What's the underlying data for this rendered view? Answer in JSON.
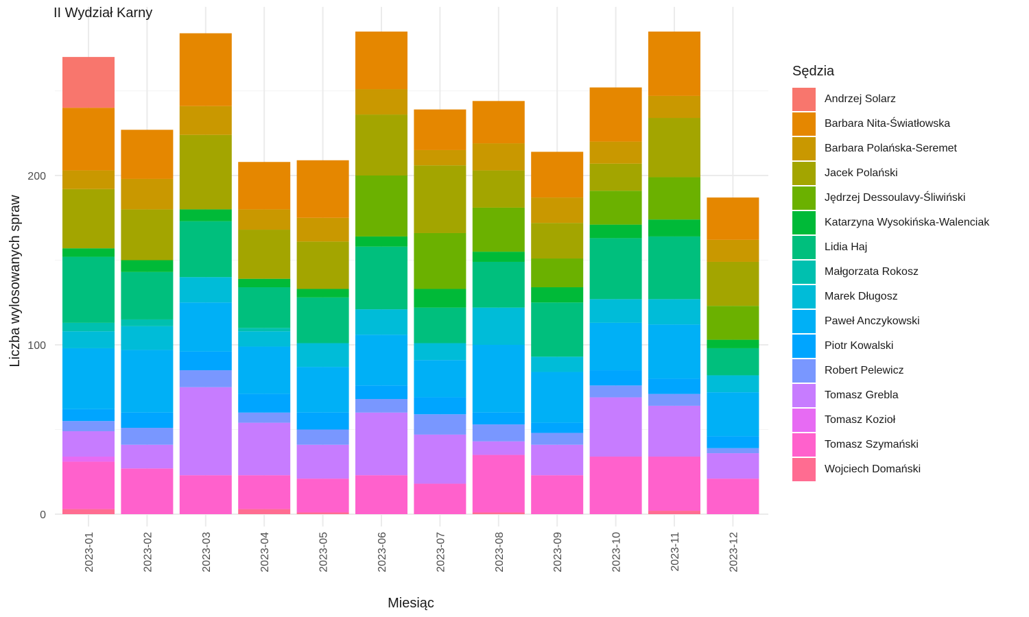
{
  "chart_data": {
    "type": "bar",
    "stacked": true,
    "title": "II Wydział Karny",
    "xlabel": "Miesiąc",
    "ylabel": "Liczba wylosowanych spraw",
    "ylim": [
      0,
      290
    ],
    "yticks": [
      0,
      100,
      200
    ],
    "grid": true,
    "legend_title": "Sędzia",
    "legend_position": "right",
    "categories": [
      "2023-01",
      "2023-02",
      "2023-03",
      "2023-04",
      "2023-05",
      "2023-06",
      "2023-07",
      "2023-08",
      "2023-09",
      "2023-10",
      "2023-11",
      "2023-12"
    ],
    "series": [
      {
        "name": "Andrzej Solarz",
        "color": "#F8766D",
        "values": [
          30,
          0,
          0,
          0,
          0,
          0,
          0,
          0,
          0,
          0,
          0,
          0
        ]
      },
      {
        "name": "Barbara Nita-Światłowska",
        "color": "#E58700",
        "values": [
          37,
          29,
          43,
          28,
          34,
          34,
          24,
          25,
          27,
          32,
          38,
          25
        ]
      },
      {
        "name": "Barbara Polańska-Seremet",
        "color": "#C99800",
        "values": [
          11,
          18,
          17,
          12,
          14,
          15,
          9,
          16,
          15,
          13,
          13,
          13
        ]
      },
      {
        "name": "Jacek Polański",
        "color": "#A3A500",
        "values": [
          35,
          30,
          44,
          29,
          28,
          36,
          40,
          22,
          21,
          16,
          35,
          26
        ]
      },
      {
        "name": "Jędrzej Dessoulavy-Śliwiński",
        "color": "#6BB100",
        "values": [
          0,
          0,
          0,
          0,
          0,
          36,
          33,
          26,
          17,
          20,
          25,
          20
        ]
      },
      {
        "name": "Katarzyna Wysokińska-Walenciak",
        "color": "#00BA38",
        "values": [
          5,
          7,
          7,
          5,
          5,
          6,
          11,
          6,
          9,
          8,
          10,
          5
        ]
      },
      {
        "name": "Lidia Haj",
        "color": "#00BF7D",
        "values": [
          39,
          28,
          33,
          24,
          27,
          37,
          21,
          27,
          32,
          36,
          37,
          16
        ]
      },
      {
        "name": "Małgorzata Rokosz",
        "color": "#00C0AF",
        "values": [
          5,
          4,
          0,
          2,
          0,
          0,
          0,
          0,
          0,
          0,
          0,
          0
        ]
      },
      {
        "name": "Marek Długosz",
        "color": "#00BCD8",
        "values": [
          10,
          14,
          15,
          9,
          14,
          15,
          10,
          22,
          9,
          14,
          15,
          10
        ]
      },
      {
        "name": "Paweł Anczykowski",
        "color": "#00B0F6",
        "values": [
          36,
          37,
          29,
          28,
          27,
          30,
          22,
          40,
          30,
          28,
          32,
          26
        ]
      },
      {
        "name": "Piotr Kowalski",
        "color": "#00A5FF",
        "values": [
          7,
          9,
          11,
          11,
          10,
          8,
          10,
          7,
          6,
          9,
          9,
          7
        ]
      },
      {
        "name": "Robert Pelewicz",
        "color": "#7997FF",
        "values": [
          6,
          10,
          10,
          6,
          9,
          8,
          12,
          10,
          7,
          7,
          7,
          3
        ]
      },
      {
        "name": "Tomasz Grebla",
        "color": "#C77CFF",
        "values": [
          15,
          14,
          52,
          31,
          20,
          37,
          29,
          8,
          18,
          35,
          30,
          15
        ]
      },
      {
        "name": "Tomasz Kozioł",
        "color": "#E76BF3",
        "values": [
          3,
          0,
          0,
          0,
          0,
          0,
          0,
          0,
          0,
          0,
          0,
          0
        ]
      },
      {
        "name": "Tomasz Szymański",
        "color": "#FF61CC",
        "values": [
          28,
          27,
          23,
          20,
          20,
          23,
          18,
          34,
          23,
          34,
          32,
          21
        ]
      },
      {
        "name": "Wojciech Domański",
        "color": "#FF6C91",
        "values": [
          3,
          0,
          0,
          3,
          1,
          0,
          0,
          1,
          0,
          0,
          2,
          0
        ]
      }
    ]
  }
}
